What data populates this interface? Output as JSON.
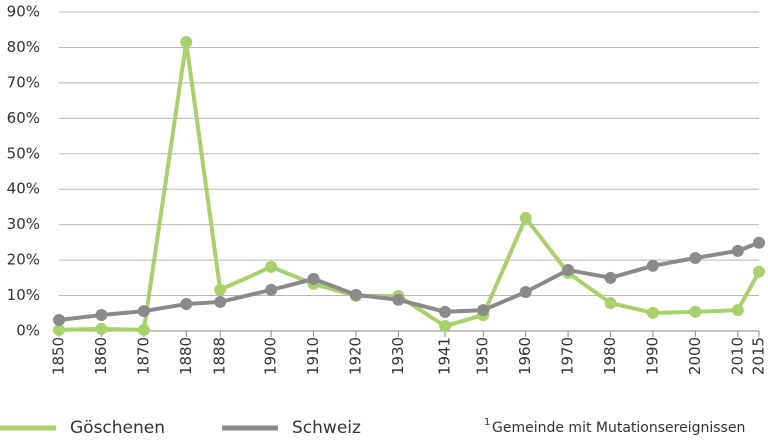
{
  "chart_data": {
    "type": "line",
    "x": [
      1850,
      1860,
      1870,
      1880,
      1888,
      1900,
      1910,
      1920,
      1930,
      1941,
      1950,
      1960,
      1970,
      1980,
      1990,
      2000,
      2010,
      2015
    ],
    "series": [
      {
        "name": "Göschenen",
        "color": "#a8d16b",
        "values": [
          0.3,
          0.6,
          0.3,
          81.5,
          11.6,
          18.1,
          13.3,
          9.9,
          9.9,
          1.4,
          4.5,
          31.9,
          16.4,
          7.9,
          5.1,
          5.4,
          5.9,
          16.7
        ]
      },
      {
        "name": "Schweiz",
        "color": "#8a8a8a",
        "values": [
          3.1,
          4.5,
          5.6,
          7.6,
          8.2,
          11.6,
          14.7,
          10.2,
          8.8,
          5.4,
          5.9,
          11.0,
          17.2,
          15.0,
          18.4,
          20.6,
          22.6,
          24.9
        ]
      }
    ],
    "xlim": [
      1850,
      2015
    ],
    "xticks": [
      1850,
      1860,
      1870,
      1880,
      1888,
      1900,
      1910,
      1920,
      1930,
      1941,
      1950,
      1960,
      1970,
      1980,
      1990,
      2000,
      2010,
      2015
    ],
    "ylim": [
      0,
      90
    ],
    "yticks": [
      {
        "value": 0,
        "label": "0%"
      },
      {
        "value": 10,
        "label": "10%"
      },
      {
        "value": 20,
        "label": "20%"
      },
      {
        "value": 30,
        "label": "30%"
      },
      {
        "value": 40,
        "label": "40%"
      },
      {
        "value": 50,
        "label": "50%"
      },
      {
        "value": 60,
        "label": "60%"
      },
      {
        "value": 70,
        "label": "70%"
      },
      {
        "value": 80,
        "label": "80%"
      },
      {
        "value": 90,
        "label": "90%"
      }
    ],
    "grid": true,
    "legend": "bottom",
    "note": {
      "marker": "1",
      "text": "Gemeinde mit Mutationsereignissen"
    }
  }
}
